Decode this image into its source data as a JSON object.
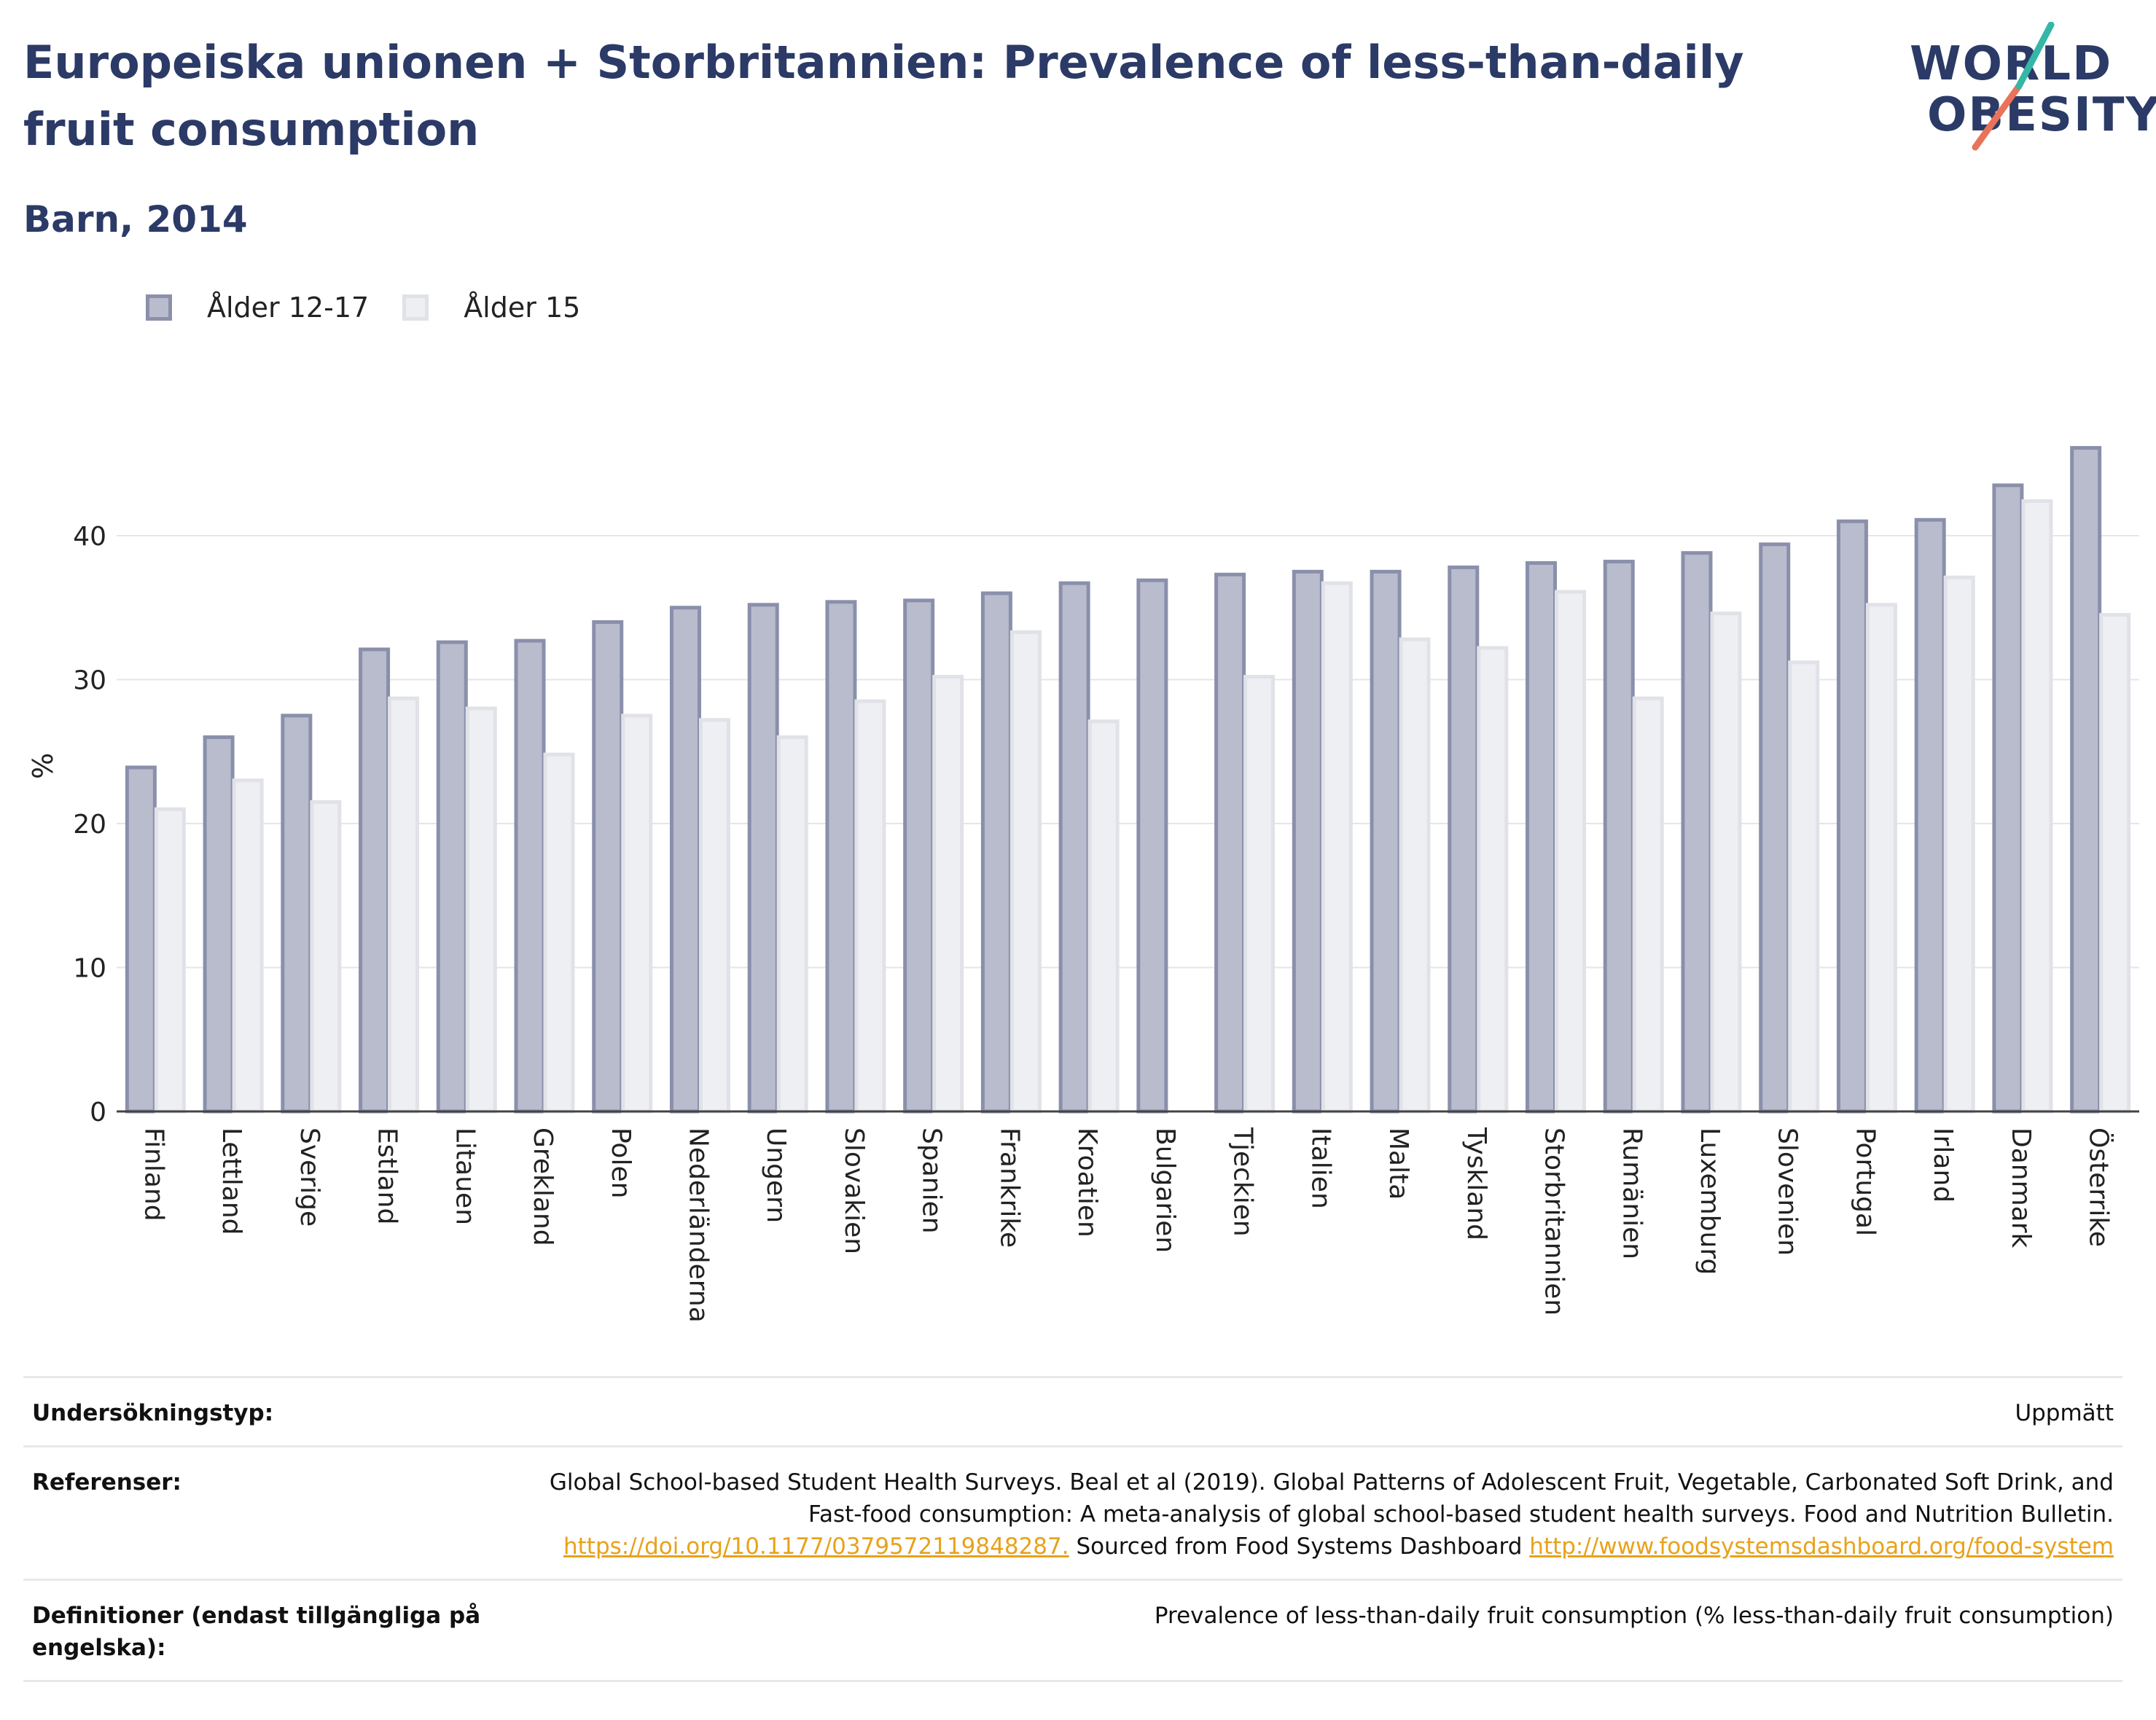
{
  "header": {
    "title": "Europeiska unionen + Storbritannien: Prevalence of less-than-daily fruit consumption",
    "subtitle": "Barn, 2014"
  },
  "logo": {
    "line1": "WORLD",
    "line2": "OBESITY",
    "accent_colors": [
      "#35b7a7",
      "#e8735a"
    ]
  },
  "colors": {
    "series1_fill": "#b9bccd",
    "series1_stroke": "#8a90ab",
    "series2_fill": "#eeeff3",
    "series2_stroke": "#e1e2e8",
    "title": "#2b3a66",
    "link": "#e8a21a"
  },
  "chart_data": {
    "type": "bar",
    "title": "Europeiska unionen + Storbritannien: Prevalence of less-than-daily fruit consumption",
    "subtitle": "Barn, 2014",
    "xlabel": "",
    "ylabel": "%",
    "ylim": [
      0,
      48
    ],
    "yticks": [
      0,
      10,
      20,
      30,
      40
    ],
    "grid": true,
    "legend_position": "top-left",
    "categories": [
      "Finland",
      "Lettland",
      "Sverige",
      "Estland",
      "Litauen",
      "Grekland",
      "Polen",
      "Nederländerna",
      "Ungern",
      "Slovakien",
      "Spanien",
      "Frankrike",
      "Kroatien",
      "Bulgarien",
      "Tjeckien",
      "Italien",
      "Malta",
      "Tyskland",
      "Storbritannien",
      "Rumänien",
      "Luxemburg",
      "Slovenien",
      "Portugal",
      "Irland",
      "Danmark",
      "Österrike"
    ],
    "series": [
      {
        "name": "Ålder 12-17",
        "values": [
          23.9,
          26.0,
          27.5,
          32.1,
          32.6,
          32.7,
          34.0,
          35.0,
          35.2,
          35.4,
          35.5,
          36.0,
          36.7,
          36.9,
          37.3,
          37.5,
          37.5,
          37.8,
          38.1,
          38.2,
          38.8,
          39.4,
          41.0,
          41.1,
          43.5,
          46.1
        ]
      },
      {
        "name": "Ålder 15",
        "values": [
          21.0,
          23.0,
          21.5,
          28.7,
          28.0,
          24.8,
          27.5,
          27.2,
          26.0,
          28.5,
          30.2,
          33.3,
          27.1,
          null,
          30.2,
          36.7,
          32.8,
          32.2,
          36.1,
          28.7,
          34.6,
          31.2,
          35.2,
          37.1,
          42.4,
          34.5
        ]
      }
    ]
  },
  "info": {
    "rows": [
      {
        "key": "Undersökningstyp:",
        "value": "Uppmätt"
      },
      {
        "key": "Referenser:",
        "value_text": "Global School-based Student Health Surveys. Beal et al (2019). Global Patterns of Adolescent Fruit, Vegetable, Carbonated Soft Drink, and Fast-food consumption: A meta-analysis of global school-based student health surveys. Food and Nutrition Bulletin.",
        "link1": "https://doi.org/10.1177/0379572119848287.",
        "value_mid": "Sourced from Food Systems Dashboard",
        "link2": "http://www.foodsystemsdashboard.org/food-system"
      },
      {
        "key": "Definitioner (endast tillgängliga på engelska):",
        "value": "Prevalence of less-than-daily fruit consumption (% less-than-daily fruit consumption)"
      }
    ]
  }
}
